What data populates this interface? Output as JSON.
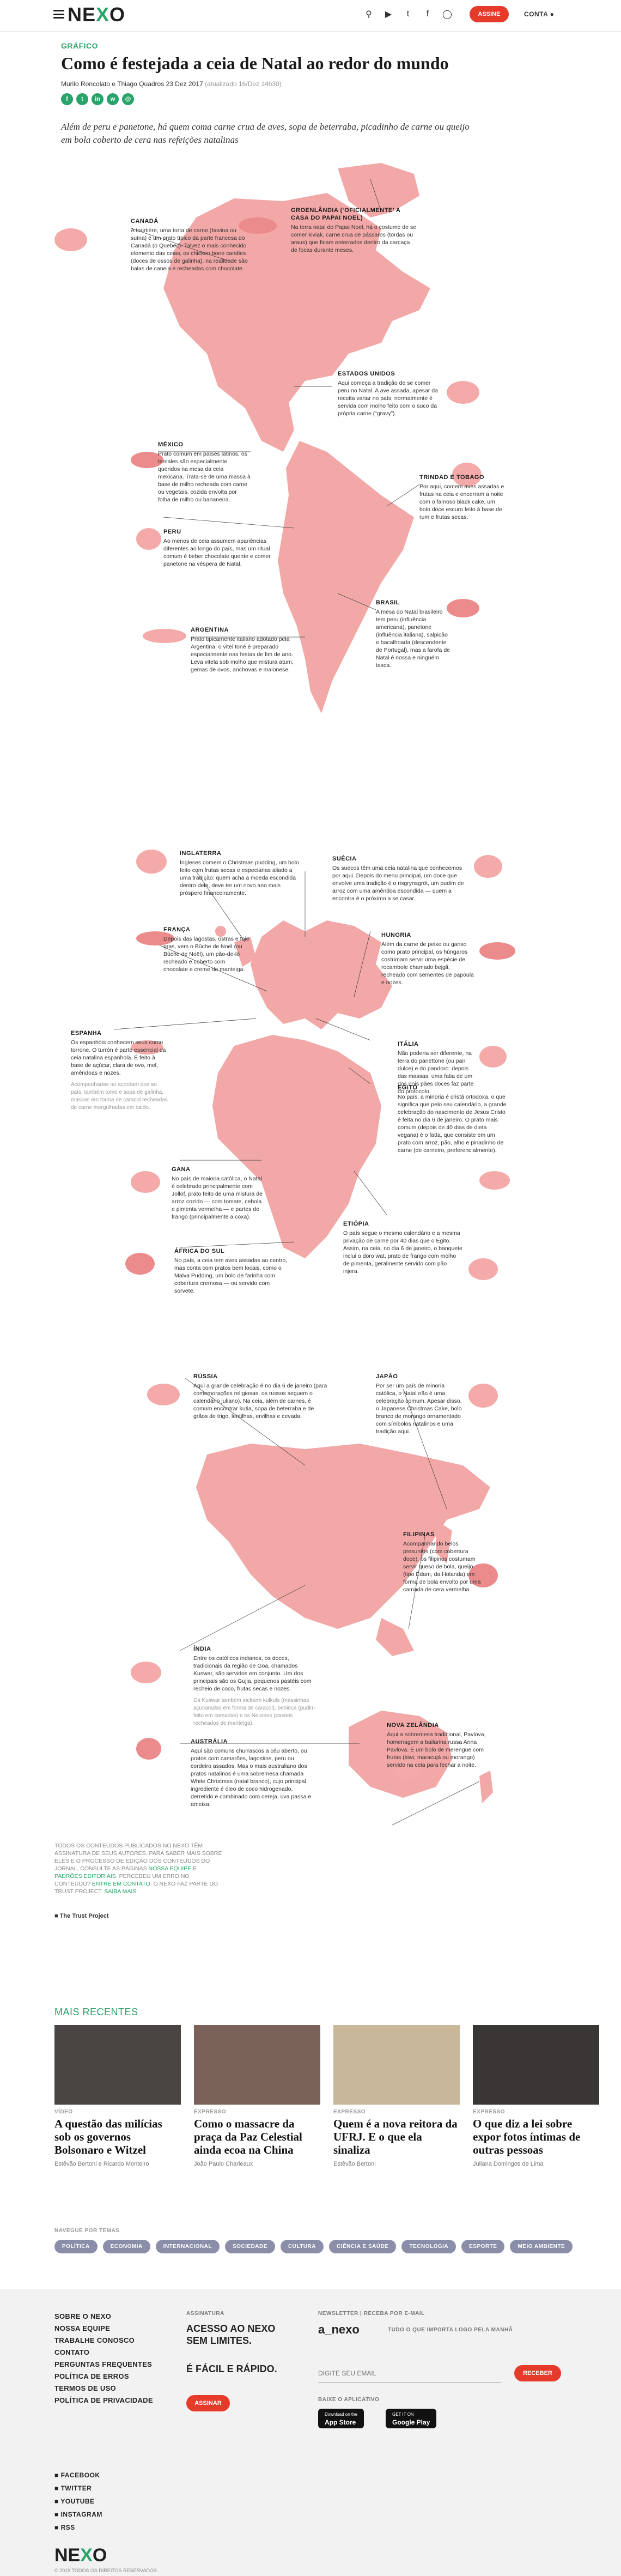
{
  "header": {
    "logo": "NEXO",
    "subscribe_label": "ASSINE",
    "account_label": "CONTA",
    "icons": [
      "search-icon",
      "youtube-icon",
      "twitter-icon",
      "facebook-icon",
      "instagram-icon"
    ]
  },
  "article": {
    "kicker": "GRÁFICO",
    "title": "Como é festejada a ceia de Natal ao redor do mundo",
    "byline": "Murilo Roncolato e Thiago Quadros",
    "date": "23 Dez 2017",
    "updated": "(atualizado 16/Dez 14h30)",
    "share": [
      "f",
      "t",
      "in",
      "w",
      "@"
    ],
    "lede": "Além de peru e panetone, há quem coma carne crua de aves, sopa de beterraba, picadinho de carne ou queijo em bola coberto de cera nas refeições natalinas"
  },
  "countries": {
    "canada": {
      "name": "CANADÁ",
      "text": "A tourtière, uma torta de carne (bovina ou suína) é um prato típico da parte francesa do Canadá (o Quebec). Talvez o mais conhecido elemento das ceias, os chicken bone candies (doces de ossos de galinha), na realidade são balas de canela e recheadas com chocolate."
    },
    "greenland": {
      "name": "GROENLÂNDIA (‘OFICIALMENTE’ A CASA DO PAPAI NOEL)",
      "text": "Na terra natal do Papai Noel, há o costume de se comer kiviak, carne crua de pássaros (tordas ou araus) que ficam enterrados dentro da carcaça de focas durante meses."
    },
    "usa": {
      "name": "ESTADOS UNIDOS",
      "text": "Aqui começa a tradição de se comer peru no Natal. A ave assada, apesar da receita variar no país, normalmente é servida com molho feito com o suco da própria carne (“gravy”)."
    },
    "mexico": {
      "name": "MÉXICO",
      "text": "Prato comum em países latinos, os tamales são especialmente queridos na mesa da ceia mexicana. Trata-se de uma massa à base de milho recheada com carne ou vegetais, cozida envolta por folha de milho ou bananeira."
    },
    "trinidad": {
      "name": "TRINDAD E TOBAGO",
      "text": "Por aqui, comem aves assadas e frutas na ceia e encerram a noite com o famoso black cake, um bolo doce escuro feito à base de rum e frutas secas."
    },
    "peru": {
      "name": "PERU",
      "text": "Ao menos de ceia assumem apariências diferentes ao longo do país, mas um ritual comum é beber chocolate quente e comer panetone na véspera de Natal."
    },
    "brazil": {
      "name": "BRASIL",
      "text": "A mesa do Natal brasileiro tem peru (influência americana), panetone (influência italiana), salpicão e bacalhoada (descendente de Portugal), mas a farofa de Natal é nossa e ninguém tasca."
    },
    "argentina": {
      "name": "ARGENTINA",
      "text": "Prato tipicamente italiano adotado pela Argentina, o vitel toné é preparado especialmente nas festas de fim de ano. Leva vitela sob molho que mistura atum, gemas de ovos, anchovas e maionese."
    },
    "england": {
      "name": "INGLATERRA",
      "text": "Ingleses comem o Christmas pudding, um bolo feito com frutas secas e especiarias aliado a uma tradição: quem acha a moeda escondida dentro dele, deve ter um novo ano mais próspero financeiramente."
    },
    "sweden": {
      "name": "SUÉCIA",
      "text": "Os suecos têm uma ceia natalina que conhecemos por aqui. Depois do menu principal, um doce que envolve uma tradição é o risgrynsgröt, um pudim de arroz com uma amêndoa escondida — quem a encontra é o próximo a se casar."
    },
    "france": {
      "name": "FRANÇA",
      "text": "Depois das lagostas, ostras e foie gras, vem o Bûche de Noël (ou Bûche de Noël), um pão-de-ló recheado e coberto com chocolate e creme de manteiga."
    },
    "hungary": {
      "name": "HUNGRIA",
      "text": "Além da carne de peixe ou ganso como prato principal, os húngaros costumam servir uma espécie de rocambole chamado bejgli, recheado com sementes de papoula e nozes."
    },
    "spain": {
      "name": "ESPANHA",
      "text": "Os espanhóis conhecem seus como torrone. O turrón é parte essencial da ceia natalina espanhola. É feito à base de açúcar, clara de ovo, mel, amêndoas e nozes.",
      "aside": "Acompanhadas ou acordam dos ao país, também tomo e sopa de galinha, massas em forma de caracol recheadas de carne mergulhadas em caldo."
    },
    "italy": {
      "name": "ITÁLIA",
      "text": "Não poderia ser diferente, na terra do panettone (ou pan dulce) e do pandoro: depois das massas, uma fatia de um dos dois pães doces faz parte do protocolo."
    },
    "egypt": {
      "name": "EGITO",
      "text": "No país, a minoria é cristã ortodoxa, o que significa que pelo seu calendário, a grande celebração do nascimento de Jesus Cristo é feita no dia 6 de janeiro. O prato mais comum (depois de 40 dias de dieta vegana) é o fatta, que consiste em um prato com arroz, pão, alho e pinadinho de carne (de carneiro, preferencialmente)."
    },
    "ghana": {
      "name": "GANA",
      "text": "No país de maioria católica, o Natal é celebrado principalmente com Jollof, prato feito de uma mistura de arroz cozido — com tomate, cebola e pimenta vermelha — e partes de frango (principalmente a coxa)."
    },
    "ethiopia": {
      "name": "ETIÓPIA",
      "text": "O país segue o mesmo calendário e a mesma privação de carne por 40 dias que o Egito. Assim, na ceia, no dia 6 de janeiro, o banquete inclui o doro wat, prato de frango com molho de pimenta, geralmente servido com pão injera."
    },
    "southafrica": {
      "name": "ÁFRICA DO SUL",
      "text": "No país, a ceia tem aves assadas ao centro, mas conta com pratos bem locais, como o Malva Pudding, um bolo de farinha com cobertura cremosa — ou servido com sorvete."
    },
    "russia": {
      "name": "RÚSSIA",
      "text": "Aqui a grande celebração é no dia 6 de janeiro (para comemorações religiosas, os russos seguem o calendário juliano). Na ceia, além de carnes, é comum encontrar kutia, sopa de beterraba e de grãos de trigo, lentilhas, ervilhas e cevada."
    },
    "japan": {
      "name": "JAPÃO",
      "text": "Por ser um país de minoria católica, o Natal não é uma celebração comum. Apesar disso, o Japanese Christmas Cake, bolo branco de morango ornamentado com símbolos natalinos e uma tradição aqui."
    },
    "philippines": {
      "name": "FILIPINAS",
      "text": "Acompanhando belos presuntos (com cobertura doce), os filipinos costumam servir queso de bola, queijo (tipo Edam, da Holanda) em forma de bola envolto por uma camada de cera vermelha."
    },
    "india": {
      "name": "ÍNDIA",
      "text": "Entre os católicos indianos, os doces, tradicionais da região de Goa, chamados Kuswar, são servidos em conjunto. Um dos principais são os Gujia, pequenos pastéis com recheio de coco, frutas secas e nozes.",
      "aside": "Os Kuswar também incluem kulkuls (massinhas açucaradas em forma de caracol), bebinca (pudim feito em camadas) e os Neureos (pasteis recheados de manteiga)."
    },
    "australia": {
      "name": "AUSTRÁLIA",
      "text": "Aqui são comuns churrascos a céu aberto, ou pratos com camarões, lagostins, peru ou cordeiro assados. Mas o mais australiano dos pratos natalinos é uma sobremesa chamada White Christmas (natal branco), cujo principal ingrediente é óleo de coco hidrogenado, derretido e combinado com cereja, uva passa e ameixa."
    },
    "newzealand": {
      "name": "NOVA ZELÂNDIA",
      "text": "Aqui a sobremesa tradicional, Pavlova, homenagem a bailarina russa Anna Pavlova. É um bolo de merengue com frutas (kiwi, maracujá ou morango) servido na ceia para fechar a noite."
    }
  },
  "disclaimer": {
    "text": "TODOS OS CONTEÚDOS PUBLICADOS NO NEXO TÊM ASSINATURA DE SEUS AUTORES. PARA SABER MAIS SOBRE ELES E O PROCESSO DE EDIÇÃO DOS CONTEÚDOS DO JORNAL, CONSULTE AS PÁGINAS",
    "link1": "NOSSA EQUIPE",
    "and": "E",
    "link2": "PADRÕES EDITORIAIS",
    "text2": ". PERCEBEU UM ERRO NO CONTEÚDO?",
    "link3": "ENTRE EM CONTATO",
    "text3": ". O NEXO FAZ PARTE DO TRUST PROJECT.",
    "link4": "SAIBA MAIS",
    "trust": "The Trust Project"
  },
  "recent": {
    "heading": "MAIS RECENTES",
    "cards": [
      {
        "cat": "VÍDEO",
        "title": "A questão das milícias sob os governos Bolsonaro e Witzel",
        "author": "Estêvão Bertoni e Ricardo Monteiro",
        "color": "#4a4442"
      },
      {
        "cat": "EXPRESSO",
        "title": "Como o massacre da praça da Paz Celestial ainda ecoa na China",
        "author": "João Paulo Charleaux",
        "color": "#7a6258"
      },
      {
        "cat": "EXPRESSO",
        "title": "Quem é a nova reitora da UFRJ. E o que ela sinaliza",
        "author": "Estêvão Bertoni",
        "color": "#c9b79a"
      },
      {
        "cat": "EXPRESSO",
        "title": "O que diz a lei sobre expor fotos íntimas de outras pessoas",
        "author": "Juliana Domingos de Lima",
        "color": "#3b3636"
      }
    ]
  },
  "tags": {
    "heading": "NAVEGUE POR TEMAS",
    "items": [
      "POLÍTICA",
      "ECONOMIA",
      "INTERNACIONAL",
      "SOCIEDADE",
      "CULTURA",
      "CIÊNCIA E SAÚDE",
      "TECNOLOGIA",
      "ESPORTE",
      "MEIO AMBIENTE"
    ]
  },
  "footer": {
    "links": [
      "SOBRE O NEXO",
      "NOSSA EQUIPE",
      "TRABALHE CONOSCO",
      "CONTATO",
      "PERGUNTAS FREQUENTES",
      "POLÍTICA DE ERROS",
      "TERMOS DE USO",
      "POLÍTICA DE PRIVACIDADE"
    ],
    "sub_label": "ASSINATURA",
    "sub_line1": "ACESSO AO NEXO",
    "sub_line2": "SEM LIMITES.",
    "sub_line3": "É FÁCIL E RÁPIDO.",
    "sub_button": "ASSINAR",
    "news_label": "NEWSLETTER | RECEBA POR E-MAIL",
    "news_brand": "a_nexo",
    "news_desc": "TUDO O QUE IMPORTA LOGO PELA MANHÃ",
    "email_placeholder": "DIGITE SEU EMAIL",
    "news_button": "RECEBER",
    "app_label": "BAIXE O APLICATIVO",
    "appstore_small": "Download on the",
    "appstore": "App Store",
    "gplay_small": "GET IT ON",
    "gplay": "Google Play",
    "social": [
      "FACEBOOK",
      "TWITTER",
      "YOUTUBE",
      "INSTAGRAM",
      "RSS"
    ],
    "logo": "NEXO",
    "copyright": "© 2019 TODOS OS DIREITOS RESERVADOS"
  }
}
